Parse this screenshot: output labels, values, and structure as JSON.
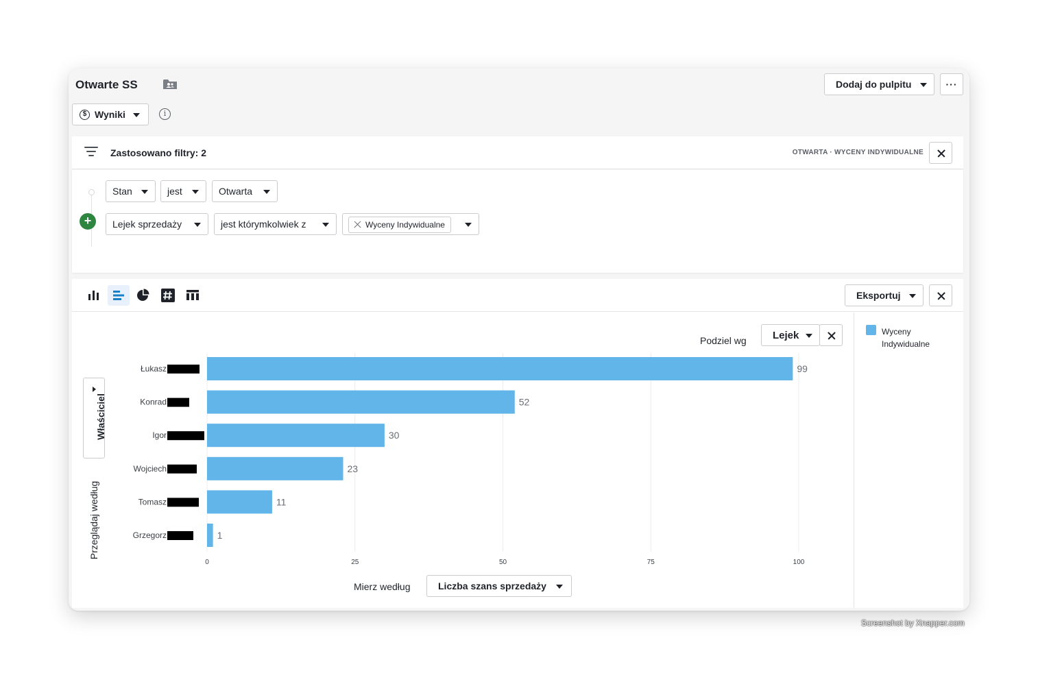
{
  "header": {
    "title": "Otwarte SS",
    "add_dashboard_label": "Dodaj do pulpitu",
    "more_label": "···",
    "results_label": "Wyniki",
    "results_icon": "$",
    "info_icon": "i"
  },
  "filters": {
    "title": "Zastosowano filtry: 2",
    "summary": "OTWARTA · WYCENY INDYWIDUALNE",
    "rows": [
      {
        "field": "Stan",
        "operator": "jest",
        "value": "Otwarta"
      },
      {
        "field": "Lejek sprzedaży",
        "operator": "jest którymkolwiek z",
        "tag": "Wyceny Indywidualne"
      }
    ],
    "add_label": "+"
  },
  "toolbar": {
    "export_label": "Eksportuj",
    "view_types": [
      "bar-chart-icon",
      "horizontal-bar-chart-icon",
      "pie-chart-icon",
      "number-icon",
      "table-icon"
    ],
    "active_view": "horizontal-bar-chart-icon"
  },
  "split": {
    "label": "Podziel wg",
    "value": "Lejek"
  },
  "browse": {
    "owner_label": "Właściciel",
    "browse_label": "Przeglądaj według"
  },
  "measure": {
    "label": "Mierz według",
    "value": "Liczba szans sprzedaży"
  },
  "legend": {
    "items": [
      {
        "name": "Wyceny Indywidualne",
        "color": "#61b5e8"
      }
    ]
  },
  "colors": {
    "bar": "#61b5e8",
    "accent_green": "#2e8540",
    "active_view_bg": "#e8f1fb",
    "active_view_icon": "#1a7fc9"
  },
  "chart_data": {
    "type": "bar",
    "orientation": "horizontal",
    "categories": [
      "Łukasz",
      "Konrad",
      "Igor",
      "Wojciech",
      "Tomasz",
      "Grzegorz"
    ],
    "series": [
      {
        "name": "Wyceny Indywidualne",
        "values": [
          99,
          52,
          30,
          23,
          11,
          1
        ]
      }
    ],
    "xlim": [
      0,
      100
    ],
    "xticks": [
      0,
      25,
      50,
      75,
      100
    ],
    "grid": true,
    "redacted_surnames": true
  },
  "watermark": "Screenshot by Xnapper.com"
}
